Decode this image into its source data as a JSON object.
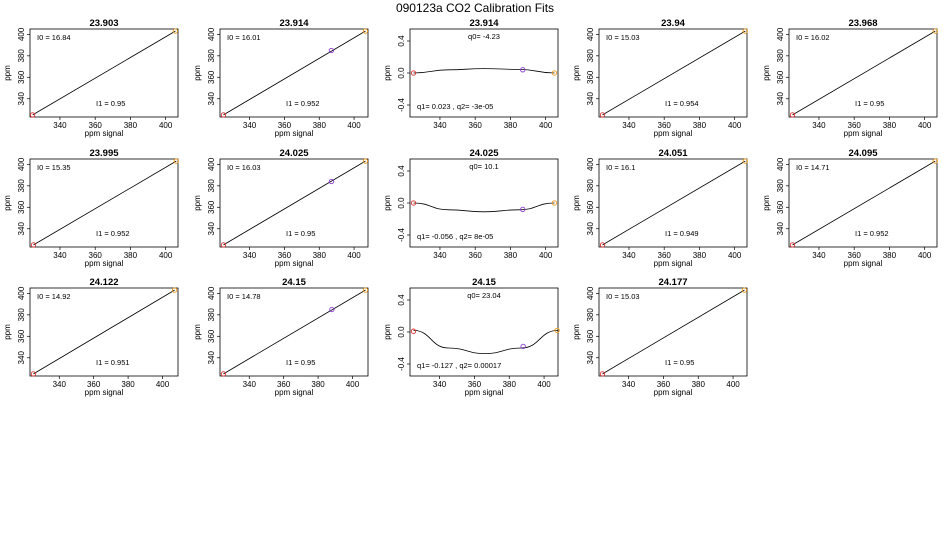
{
  "figure": {
    "title": "090123a   CO2 Calibration Fits"
  },
  "colors": {
    "low_point": "#e03030",
    "mid_point": "#8a3ad0",
    "high_point": "#f29b18",
    "line": "#000000"
  },
  "chart_data": [
    {
      "type": "line",
      "title": "23.903",
      "xlabel": "ppm signal",
      "ylabel": "ppm",
      "fit": "linear",
      "xlim": [
        323,
        407
      ],
      "ylim": [
        323,
        405
      ],
      "xticks": [
        340,
        360,
        380,
        400
      ],
      "yticks": [
        340,
        360,
        380,
        400
      ],
      "annotations": {
        "i0": "I0 =  16.84",
        "i1": "I1 =  0.95"
      },
      "points": [
        {
          "x": 324.5,
          "y": 325,
          "color": "low"
        },
        {
          "x": 405.5,
          "y": 403,
          "color": "high"
        }
      ]
    },
    {
      "type": "line",
      "title": "23.914",
      "xlabel": "ppm signal",
      "ylabel": "ppm",
      "fit": "linear",
      "xlim": [
        323,
        408
      ],
      "ylim": [
        323,
        405
      ],
      "xticks": [
        340,
        360,
        380,
        400
      ],
      "yticks": [
        340,
        360,
        380,
        400
      ],
      "annotations": {
        "i0": "I0 =  16.01",
        "i1": "I1 =  0.952"
      },
      "points": [
        {
          "x": 325,
          "y": 325,
          "color": "low"
        },
        {
          "x": 387,
          "y": 385,
          "color": "mid"
        },
        {
          "x": 406.5,
          "y": 403,
          "color": "high"
        }
      ]
    },
    {
      "type": "line",
      "title": "23.914",
      "xlabel": "",
      "ylabel": "ppm",
      "fit": "quadratic",
      "xlim": [
        323,
        407
      ],
      "ylim": [
        -0.55,
        0.55
      ],
      "xticks": [
        340,
        360,
        380,
        400
      ],
      "yticks": [
        -0.4,
        0.0,
        0.4
      ],
      "annotations": {
        "q0": "q0= -4.23",
        "q": "q1= 0.023 , q2= -3e-05"
      },
      "curve": {
        "x": [
          325,
          345,
          365,
          385,
          405
        ],
        "y": [
          0.0,
          0.04,
          0.055,
          0.045,
          0.0
        ]
      },
      "points": [
        {
          "x": 325,
          "y": 0.0,
          "color": "low"
        },
        {
          "x": 387,
          "y": 0.04,
          "color": "mid"
        },
        {
          "x": 405,
          "y": 0.0,
          "color": "high"
        }
      ]
    },
    {
      "type": "line",
      "title": "23.94",
      "xlabel": "ppm signal",
      "ylabel": "ppm",
      "fit": "linear",
      "xlim": [
        323,
        407
      ],
      "ylim": [
        323,
        405
      ],
      "xticks": [
        340,
        360,
        380,
        400
      ],
      "yticks": [
        340,
        360,
        380,
        400
      ],
      "annotations": {
        "i0": "I0 =  15.03",
        "i1": "I1 =  0.954"
      },
      "points": [
        {
          "x": 325,
          "y": 325,
          "color": "low"
        },
        {
          "x": 406,
          "y": 403,
          "color": "high"
        }
      ]
    },
    {
      "type": "line",
      "title": "23.968",
      "xlabel": "ppm signal",
      "ylabel": "ppm",
      "fit": "linear",
      "xlim": [
        323,
        407
      ],
      "ylim": [
        323,
        405
      ],
      "xticks": [
        340,
        360,
        380,
        400
      ],
      "yticks": [
        340,
        360,
        380,
        400
      ],
      "annotations": {
        "i0": "I0 =  16.02",
        "i1": "I1 =  0.95"
      },
      "points": [
        {
          "x": 325,
          "y": 325,
          "color": "low"
        },
        {
          "x": 406,
          "y": 403,
          "color": "high"
        }
      ]
    },
    {
      "type": "line",
      "title": "23.995",
      "xlabel": "ppm signal",
      "ylabel": "ppm",
      "fit": "linear",
      "xlim": [
        323,
        407
      ],
      "ylim": [
        323,
        405
      ],
      "xticks": [
        340,
        360,
        380,
        400
      ],
      "yticks": [
        340,
        360,
        380,
        400
      ],
      "annotations": {
        "i0": "I0 =  15.35",
        "i1": "I1 =  0.952"
      },
      "points": [
        {
          "x": 325,
          "y": 325,
          "color": "low"
        },
        {
          "x": 406,
          "y": 403,
          "color": "high"
        }
      ]
    },
    {
      "type": "line",
      "title": "24.025",
      "xlabel": "ppm signal",
      "ylabel": "ppm",
      "fit": "linear",
      "xlim": [
        323,
        408
      ],
      "ylim": [
        323,
        405
      ],
      "xticks": [
        340,
        360,
        380,
        400
      ],
      "yticks": [
        340,
        360,
        380,
        400
      ],
      "annotations": {
        "i0": "I0 =  16.03",
        "i1": "I1 =  0.95"
      },
      "points": [
        {
          "x": 325,
          "y": 325,
          "color": "low"
        },
        {
          "x": 387,
          "y": 384,
          "color": "mid"
        },
        {
          "x": 406.5,
          "y": 403,
          "color": "high"
        }
      ]
    },
    {
      "type": "line",
      "title": "24.025",
      "xlabel": "",
      "ylabel": "ppm",
      "fit": "quadratic",
      "xlim": [
        323,
        407
      ],
      "ylim": [
        -0.55,
        0.55
      ],
      "xticks": [
        340,
        360,
        380,
        400
      ],
      "yticks": [
        -0.4,
        0.0,
        0.4
      ],
      "annotations": {
        "q0": "q0= 10.1",
        "q": "q1= -0.056 , q2= 8e-05"
      },
      "curve": {
        "x": [
          325,
          345,
          365,
          385,
          405
        ],
        "y": [
          0.0,
          -0.085,
          -0.11,
          -0.085,
          0.0
        ]
      },
      "points": [
        {
          "x": 325,
          "y": 0.0,
          "color": "low"
        },
        {
          "x": 387,
          "y": -0.08,
          "color": "mid"
        },
        {
          "x": 405,
          "y": 0.0,
          "color": "high"
        }
      ]
    },
    {
      "type": "line",
      "title": "24.051",
      "xlabel": "ppm signal",
      "ylabel": "ppm",
      "fit": "linear",
      "xlim": [
        323,
        407
      ],
      "ylim": [
        323,
        405
      ],
      "xticks": [
        340,
        360,
        380,
        400
      ],
      "yticks": [
        340,
        360,
        380,
        400
      ],
      "annotations": {
        "i0": "I0 =  16.1",
        "i1": "I1 =  0.949"
      },
      "points": [
        {
          "x": 325,
          "y": 325,
          "color": "low"
        },
        {
          "x": 406,
          "y": 403,
          "color": "high"
        }
      ]
    },
    {
      "type": "line",
      "title": "24.095",
      "xlabel": "ppm signal",
      "ylabel": "ppm",
      "fit": "linear",
      "xlim": [
        323,
        407
      ],
      "ylim": [
        323,
        405
      ],
      "xticks": [
        340,
        360,
        380,
        400
      ],
      "yticks": [
        340,
        360,
        380,
        400
      ],
      "annotations": {
        "i0": "I0 =  14.71",
        "i1": "I1 =  0.952"
      },
      "points": [
        {
          "x": 325,
          "y": 325,
          "color": "low"
        },
        {
          "x": 406,
          "y": 403,
          "color": "high"
        }
      ]
    },
    {
      "type": "line",
      "title": "24.122",
      "xlabel": "ppm signal",
      "ylabel": "ppm",
      "fit": "linear",
      "xlim": [
        323,
        409
      ],
      "ylim": [
        323,
        405
      ],
      "xticks": [
        340,
        360,
        380,
        400
      ],
      "yticks": [
        340,
        360,
        380,
        400
      ],
      "annotations": {
        "i0": "I0 =  14.92",
        "i1": "I1 =  0.951"
      },
      "points": [
        {
          "x": 325,
          "y": 325,
          "color": "low"
        },
        {
          "x": 407,
          "y": 403,
          "color": "high"
        }
      ]
    },
    {
      "type": "line",
      "title": "24.15",
      "xlabel": "ppm signal",
      "ylabel": "ppm",
      "fit": "linear",
      "xlim": [
        323,
        409
      ],
      "ylim": [
        323,
        405
      ],
      "xticks": [
        340,
        360,
        380,
        400
      ],
      "yticks": [
        340,
        360,
        380,
        400
      ],
      "annotations": {
        "i0": "I0 =  14.78",
        "i1": "I1 =  0.95"
      },
      "points": [
        {
          "x": 325,
          "y": 325,
          "color": "low"
        },
        {
          "x": 388,
          "y": 385,
          "color": "mid"
        },
        {
          "x": 407.5,
          "y": 403,
          "color": "high"
        }
      ]
    },
    {
      "type": "line",
      "title": "24.15",
      "xlabel": "ppm signal",
      "ylabel": "ppm",
      "fit": "quadratic",
      "xlim": [
        323,
        408
      ],
      "ylim": [
        -0.55,
        0.55
      ],
      "xticks": [
        340,
        360,
        380,
        400
      ],
      "yticks": [
        -0.4,
        0.0,
        0.4
      ],
      "annotations": {
        "q0": "q0= 23.04",
        "q": "q1= -0.127 , q2= 0.00017"
      },
      "curve": {
        "x": [
          325,
          345,
          366,
          387,
          408
        ],
        "y": [
          0.02,
          -0.2,
          -0.27,
          -0.2,
          0.02
        ]
      },
      "points": [
        {
          "x": 325,
          "y": 0.01,
          "color": "low"
        },
        {
          "x": 388,
          "y": -0.18,
          "color": "mid"
        },
        {
          "x": 407.5,
          "y": 0.02,
          "color": "high"
        }
      ]
    },
    {
      "type": "line",
      "title": "24.177",
      "xlabel": "ppm signal",
      "ylabel": "ppm",
      "fit": "linear",
      "xlim": [
        323,
        408
      ],
      "ylim": [
        323,
        405
      ],
      "xticks": [
        340,
        360,
        380,
        400
      ],
      "yticks": [
        340,
        360,
        380,
        400
      ],
      "annotations": {
        "i0": "I0 =  15.03",
        "i1": "I1 =  0.95"
      },
      "points": [
        {
          "x": 325,
          "y": 325,
          "color": "low"
        },
        {
          "x": 406.5,
          "y": 403,
          "color": "high"
        }
      ]
    }
  ]
}
